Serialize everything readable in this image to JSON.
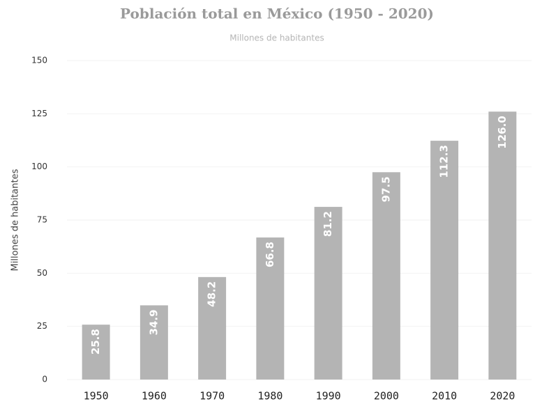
{
  "chart_data": {
    "type": "bar",
    "title": "Población total en México (1950 - 2020)",
    "subtitle": "Millones de habitantes",
    "y_label": "Millones de habitantes",
    "categories": [
      "1950",
      "1960",
      "1970",
      "1980",
      "1990",
      "2000",
      "2010",
      "2020"
    ],
    "values": [
      25.8,
      34.9,
      48.2,
      66.8,
      81.2,
      97.5,
      112.3,
      126.0
    ],
    "value_labels": [
      "25.8",
      "34.9",
      "48.2",
      "66.8",
      "81.2",
      "97.5",
      "112.3",
      "126.0"
    ],
    "color": "#b4b4b4",
    "ylim": [
      0,
      150
    ],
    "yticks": [
      0,
      25,
      50,
      75,
      100,
      125,
      150
    ],
    "grid": true
  }
}
